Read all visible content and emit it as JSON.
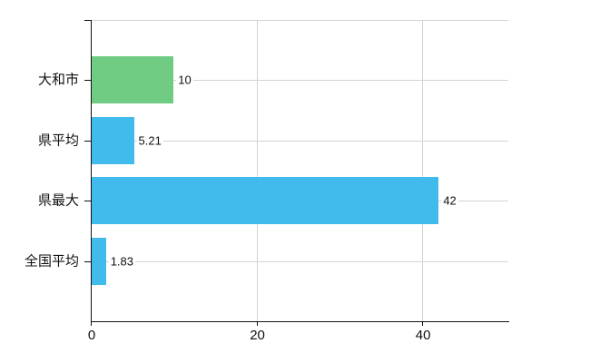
{
  "chart_data": {
    "type": "bar",
    "orientation": "horizontal",
    "title": "",
    "categories": [
      "大和市",
      "県平均",
      "県最大",
      "全国平均"
    ],
    "values": [
      10,
      5.21,
      42,
      1.83
    ],
    "value_labels": [
      "10",
      "5.21",
      "42",
      "1.83"
    ],
    "bar_colors": [
      "#6fcc82",
      "#41bbec",
      "#41bbec",
      "#41bbec"
    ],
    "highlight_color": "#6fcc82",
    "default_bar_color": "#41bbec",
    "xlabel": "",
    "ylabel": "",
    "xlim": [
      0,
      50.4
    ],
    "xticks": [
      0,
      20,
      40
    ],
    "xtick_labels": [
      "0",
      "20",
      "40"
    ],
    "grid": true,
    "legend": false,
    "colors": {
      "grid": "#d4d4d4",
      "axis": "#111111",
      "text": "#111111",
      "background": "#ffffff"
    }
  }
}
